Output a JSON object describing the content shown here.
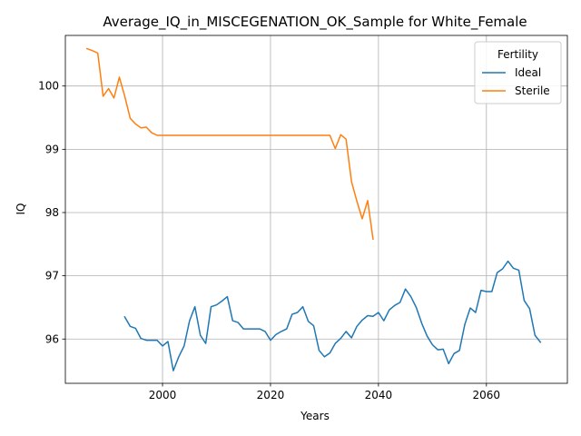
{
  "chart_data": {
    "type": "line",
    "title": "Average_IQ_in_MISCEGENATION_OK_Sample for White_Female",
    "xlabel": "Years",
    "ylabel": "IQ",
    "xlim": [
      1982,
      2075
    ],
    "ylim": [
      95.3,
      100.8
    ],
    "xticks": [
      2000,
      2020,
      2040,
      2060
    ],
    "yticks": [
      96,
      97,
      98,
      99,
      100
    ],
    "grid": true,
    "legend": {
      "title": "Fertility",
      "position": "top-right"
    },
    "series": [
      {
        "name": "Ideal",
        "color": "#1f77b4",
        "x": [
          1993,
          1994,
          1995,
          1996,
          1997,
          1998,
          1999,
          2000,
          2001,
          2002,
          2003,
          2004,
          2005,
          2006,
          2007,
          2008,
          2009,
          2010,
          2011,
          2012,
          2013,
          2014,
          2015,
          2016,
          2017,
          2018,
          2019,
          2020,
          2021,
          2022,
          2023,
          2024,
          2025,
          2026,
          2027,
          2028,
          2029,
          2030,
          2031,
          2032,
          2033,
          2034,
          2035,
          2036,
          2037,
          2038,
          2039,
          2040,
          2041,
          2042,
          2043,
          2044,
          2045,
          2046,
          2047,
          2048,
          2049,
          2050,
          2051,
          2052,
          2053,
          2054,
          2055,
          2056,
          2057,
          2058,
          2059,
          2060,
          2061,
          2062,
          2063,
          2064,
          2065,
          2066,
          2067,
          2068,
          2069,
          2070
        ],
        "y": [
          96.35,
          96.2,
          96.17,
          96.01,
          95.98,
          95.98,
          95.98,
          95.89,
          95.96,
          95.5,
          95.72,
          95.89,
          96.29,
          96.51,
          96.06,
          95.93,
          96.51,
          96.54,
          96.6,
          96.67,
          96.29,
          96.26,
          96.16,
          96.16,
          96.16,
          96.16,
          96.12,
          95.98,
          96.07,
          96.12,
          96.16,
          96.39,
          96.42,
          96.51,
          96.28,
          96.21,
          95.82,
          95.72,
          95.78,
          95.93,
          96.01,
          96.12,
          96.02,
          96.2,
          96.3,
          96.37,
          96.36,
          96.42,
          96.29,
          96.46,
          96.53,
          96.58,
          96.79,
          96.67,
          96.5,
          96.25,
          96.05,
          95.91,
          95.83,
          95.84,
          95.61,
          95.77,
          95.82,
          96.23,
          96.49,
          96.42,
          96.77,
          96.75,
          96.75,
          97.05,
          97.11,
          97.23,
          97.12,
          97.09,
          96.61,
          96.48,
          96.06,
          95.95
        ]
      },
      {
        "name": "Sterile",
        "color": "#ff7f0e",
        "x": [
          1986,
          1987,
          1988,
          1989,
          1990,
          1991,
          1992,
          1993,
          1994,
          1995,
          1996,
          1997,
          1998,
          1999,
          2000,
          2001,
          2002,
          2003,
          2004,
          2005,
          2006,
          2007,
          2008,
          2009,
          2010,
          2011,
          2012,
          2013,
          2014,
          2015,
          2016,
          2017,
          2018,
          2019,
          2020,
          2021,
          2022,
          2023,
          2024,
          2025,
          2026,
          2027,
          2028,
          2029,
          2030,
          2031,
          2032,
          2033,
          2034,
          2035,
          2036,
          2037,
          2038,
          2039
        ],
        "y": [
          100.59,
          100.56,
          100.52,
          99.84,
          99.96,
          99.81,
          100.14,
          99.84,
          99.49,
          99.4,
          99.34,
          99.35,
          99.26,
          99.22,
          99.22,
          99.22,
          99.22,
          99.22,
          99.22,
          99.22,
          99.22,
          99.22,
          99.22,
          99.22,
          99.22,
          99.22,
          99.22,
          99.22,
          99.22,
          99.22,
          99.22,
          99.22,
          99.22,
          99.22,
          99.22,
          99.22,
          99.22,
          99.22,
          99.22,
          99.22,
          99.22,
          99.22,
          99.22,
          99.22,
          99.22,
          99.22,
          99.01,
          99.23,
          99.16,
          98.49,
          98.18,
          97.9,
          98.19,
          97.58
        ]
      }
    ]
  }
}
